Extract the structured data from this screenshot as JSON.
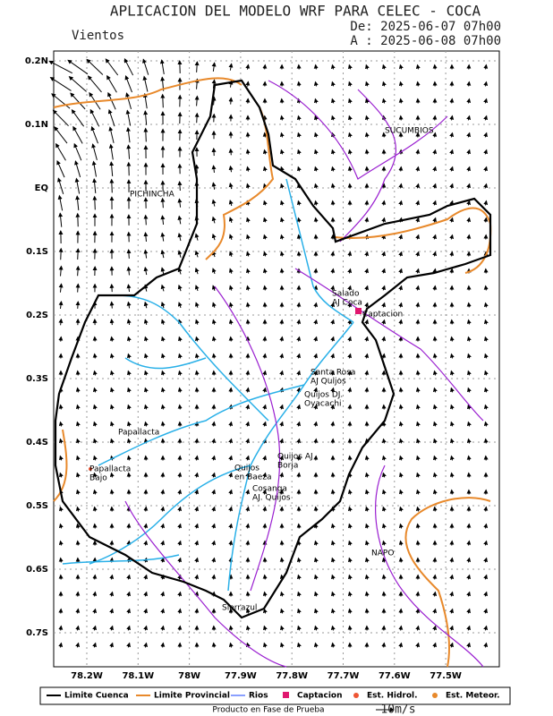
{
  "header": {
    "title": "APLICACION DEL MODELO WRF PARA CELEC - COCA",
    "subtitle": "Vientos",
    "from": "De: 2025-06-07 07h00",
    "to": "A : 2025-06-08 07h00"
  },
  "map": {
    "lat_labels": [
      "0.2N",
      "0.1N",
      "EQ",
      "0.1S",
      "0.2S",
      "0.3S",
      "0.4S",
      "0.5S",
      "0.6S",
      "0.7S"
    ],
    "lon_labels": [
      "78.2W",
      "78.1W",
      "78W",
      "77.9W",
      "77.8W",
      "77.7W",
      "77.6W",
      "77.5W"
    ],
    "places": [
      "PICHINCHA",
      "SUCUMBIOS",
      "NAPO",
      "Salado",
      "AJ Coca",
      "Captacion",
      "Santa Rosa",
      "AJ Quijos",
      "Quijos DJ.",
      "Oyacachi",
      "Papallacta",
      "Papallacta",
      "Bajo",
      "Quijos AJ",
      "Borja",
      "Quijos",
      "en Baeza",
      "Cosanga",
      "AJ. Quijos",
      "Sierrazul"
    ]
  },
  "legend": [
    "Limite Cuenca",
    "Limite Provincial",
    "Rios",
    "Captacion",
    "Est. Hidrol.",
    "Est. Meteor."
  ],
  "footer": {
    "note": "Producto en Fase de Prueba",
    "scale": "10m/s"
  }
}
